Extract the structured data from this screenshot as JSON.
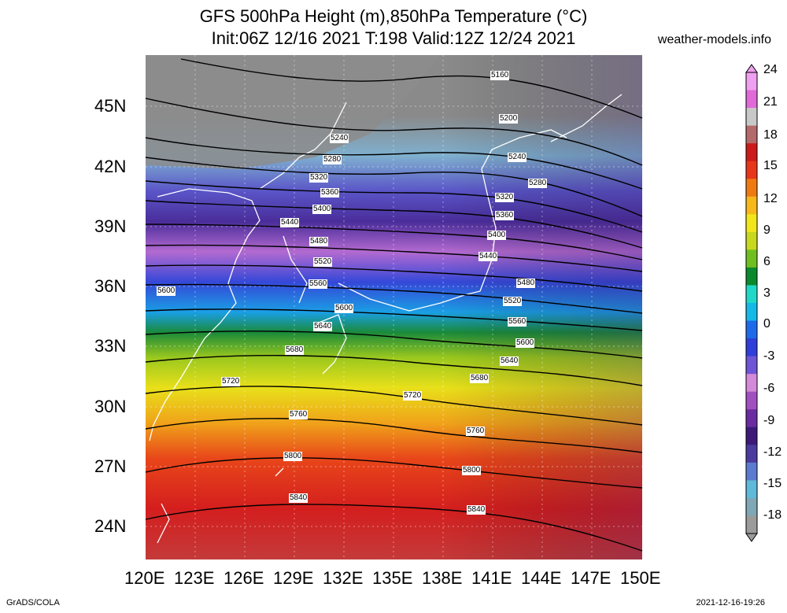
{
  "header": {
    "title_line1": "GFS 500hPa Height (m),850hPa Temperature (°C)",
    "title_line2": "Init:06Z 12/16 2021 T:198 Valid:12Z 12/24 2021",
    "site": "weather-models.info"
  },
  "footer": {
    "left": "GrADS/COLA",
    "right": "2021-12-16-19:26"
  },
  "map": {
    "lat_labels": [
      "45N",
      "42N",
      "39N",
      "36N",
      "33N",
      "30N",
      "27N",
      "24N"
    ],
    "lon_labels": [
      "120E",
      "123E",
      "126E",
      "129E",
      "132E",
      "135E",
      "138E",
      "141E",
      "144E",
      "147E",
      "150E"
    ],
    "contour_labels": [
      "5160",
      "5200",
      "5240",
      "5240",
      "5280",
      "5280",
      "5320",
      "5320",
      "5360",
      "5360",
      "5400",
      "5400",
      "5440",
      "5440",
      "5480",
      "5480",
      "5520",
      "5520",
      "5560",
      "5560",
      "5600",
      "5600",
      "5600",
      "5640",
      "5640",
      "5680",
      "5680",
      "5720",
      "5720",
      "5760",
      "5760",
      "5800",
      "5800",
      "5840",
      "5840"
    ]
  },
  "colorbar": {
    "labels": [
      "24",
      "21",
      "18",
      "15",
      "12",
      "9",
      "6",
      "3",
      "0",
      "-3",
      "-6",
      "-9",
      "-12",
      "-15",
      "-18"
    ],
    "colors": [
      "#9b9b9b",
      "#7fa7b5",
      "#5fb9da",
      "#5a7bd0",
      "#4b3b9e",
      "#3b1a78",
      "#6a2ca0",
      "#a24fc0",
      "#d48ad8",
      "#6d55d6",
      "#2f3ed8",
      "#1d6bea",
      "#16b8e8",
      "#1fd8c8",
      "#0a8a2c",
      "#6fbf20",
      "#c8d81e",
      "#f2e61a",
      "#f7b81a",
      "#f07a12",
      "#e8361a",
      "#cc1a1a",
      "#b46a6a",
      "#c8c8c8",
      "#e06ad8",
      "#f0a0f0"
    ]
  }
}
